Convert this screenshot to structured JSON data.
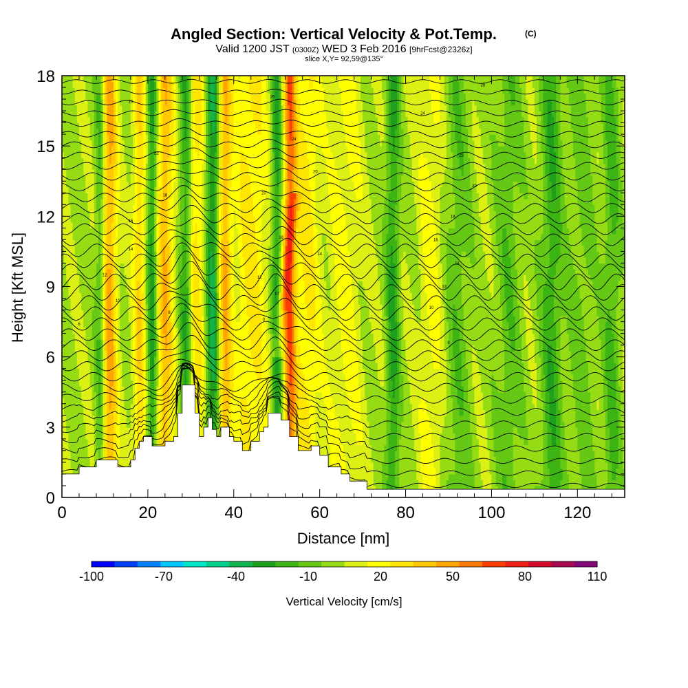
{
  "chart_data": {
    "type": "heatmap",
    "title": "Angled Section: Vertical Velocity & Pot.Temp.",
    "title_mark": "(C)",
    "subtitle": {
      "valid": "Valid 1200 JST",
      "zulu": "(0300Z)",
      "date": "WED 3 Feb 2016",
      "forecast": "[9hrFcst@2326z]"
    },
    "slice_label": "slice X,Y= 92,59@135°",
    "xlabel": "Distance [nm]",
    "ylabel": "Height [Kft MSL]",
    "xlim": [
      0,
      131
    ],
    "ylim": [
      0,
      18
    ],
    "x_ticks": [
      0,
      20,
      40,
      60,
      80,
      100,
      120
    ],
    "y_ticks": [
      0,
      3,
      6,
      9,
      12,
      15,
      18
    ],
    "colorbar": {
      "label": "Vertical Velocity [cm/s]",
      "min": -100,
      "max": 110,
      "step": 10,
      "tick_labels": [
        -100,
        -70,
        -40,
        -10,
        20,
        50,
        80,
        110
      ],
      "colors": [
        "#0000ff",
        "#0040ff",
        "#0080ff",
        "#00c8ff",
        "#00e6c8",
        "#00d28c",
        "#12b450",
        "#1ea01e",
        "#3cb414",
        "#64c814",
        "#96dc14",
        "#dcf014",
        "#ffff00",
        "#ffe600",
        "#ffc800",
        "#ffa500",
        "#ff7800",
        "#ff3c00",
        "#f01e14",
        "#d20a28",
        "#aa0a50",
        "#820a78"
      ]
    },
    "velocity_bands": [
      {
        "x": 11,
        "w": 1.8,
        "v": 45
      },
      {
        "x": 9,
        "w": 1.2,
        "v": -25
      },
      {
        "x": 18,
        "w": 1.5,
        "v": 30
      },
      {
        "x": 21,
        "w": 1.2,
        "v": -35
      },
      {
        "x": 24,
        "w": 2.0,
        "v": 40
      },
      {
        "x": 29,
        "w": 1.5,
        "v": -35
      },
      {
        "x": 31,
        "w": 2.0,
        "v": 30
      },
      {
        "x": 35,
        "w": 1.5,
        "v": -40
      },
      {
        "x": 38,
        "w": 1.5,
        "v": 40
      },
      {
        "x": 44,
        "w": 4.0,
        "v": 25
      },
      {
        "x": 50,
        "w": 1.2,
        "v": -35
      },
      {
        "x": 53,
        "w": 1.5,
        "v": 55
      },
      {
        "x": 57,
        "w": 3.0,
        "v": 25
      },
      {
        "x": 66,
        "w": 4.0,
        "v": 15
      },
      {
        "x": 77,
        "w": 1.5,
        "v": -30
      },
      {
        "x": 86,
        "w": 3.0,
        "v": 15
      },
      {
        "x": 92,
        "w": 3.0,
        "v": -15
      },
      {
        "x": 104,
        "w": 3.0,
        "v": -15
      },
      {
        "x": 114,
        "w": 2.5,
        "v": -25
      },
      {
        "x": 121,
        "w": 3.0,
        "v": -12
      },
      {
        "x": 128,
        "w": 2.0,
        "v": -20
      }
    ],
    "terrain": [
      [
        0,
        1.0
      ],
      [
        4,
        1.0
      ],
      [
        4,
        1.3
      ],
      [
        8,
        1.3
      ],
      [
        8,
        1.6
      ],
      [
        13,
        1.6
      ],
      [
        13,
        1.3
      ],
      [
        16,
        1.3
      ],
      [
        16,
        1.6
      ],
      [
        17,
        1.6
      ],
      [
        17,
        2.1
      ],
      [
        18,
        2.1
      ],
      [
        18,
        2.4
      ],
      [
        19,
        2.4
      ],
      [
        19,
        2.6
      ],
      [
        21,
        2.6
      ],
      [
        21,
        2.2
      ],
      [
        24,
        2.2
      ],
      [
        24,
        2.4
      ],
      [
        26,
        2.4
      ],
      [
        26,
        2.6
      ],
      [
        27,
        2.6
      ],
      [
        27,
        3.6
      ],
      [
        28,
        3.6
      ],
      [
        28,
        4.8
      ],
      [
        31,
        4.8
      ],
      [
        31,
        3.6
      ],
      [
        32,
        3.6
      ],
      [
        32,
        2.6
      ],
      [
        33,
        2.6
      ],
      [
        33,
        3.0
      ],
      [
        34,
        3.0
      ],
      [
        34,
        3.4
      ],
      [
        35,
        3.4
      ],
      [
        35,
        2.9
      ],
      [
        36,
        2.9
      ],
      [
        36,
        2.6
      ],
      [
        37,
        2.6
      ],
      [
        37,
        3.0
      ],
      [
        39,
        3.0
      ],
      [
        39,
        2.6
      ],
      [
        40,
        2.6
      ],
      [
        40,
        2.4
      ],
      [
        42,
        2.4
      ],
      [
        42,
        2.0
      ],
      [
        44,
        2.0
      ],
      [
        44,
        2.4
      ],
      [
        46,
        2.4
      ],
      [
        46,
        2.8
      ],
      [
        47,
        2.8
      ],
      [
        47,
        3.0
      ],
      [
        48,
        3.0
      ],
      [
        48,
        3.6
      ],
      [
        51,
        3.6
      ],
      [
        51,
        3.3
      ],
      [
        53,
        3.3
      ],
      [
        53,
        2.6
      ],
      [
        55,
        2.6
      ],
      [
        55,
        2.0
      ],
      [
        58,
        2.0
      ],
      [
        58,
        2.2
      ],
      [
        60,
        2.2
      ],
      [
        60,
        1.8
      ],
      [
        62,
        1.8
      ],
      [
        62,
        1.3
      ],
      [
        65,
        1.3
      ],
      [
        65,
        1.0
      ],
      [
        67,
        1.0
      ],
      [
        67,
        0.7
      ],
      [
        71,
        0.7
      ],
      [
        71,
        0.35
      ],
      [
        131,
        0.35
      ]
    ],
    "contour_labels": [
      {
        "text": "6",
        "x": 4,
        "y": 7.4
      },
      {
        "text": "8",
        "x": 25,
        "y": 7.9
      },
      {
        "text": "8",
        "x": 47,
        "y": 7.6
      },
      {
        "text": "8",
        "x": 90,
        "y": 6.6
      },
      {
        "text": "10",
        "x": 13,
        "y": 8.4
      },
      {
        "text": "10",
        "x": 50,
        "y": 8.7
      },
      {
        "text": "10",
        "x": 86,
        "y": 8.1
      },
      {
        "text": "12",
        "x": 10,
        "y": 9.5
      },
      {
        "text": "12",
        "x": 46,
        "y": 9.4
      },
      {
        "text": "13",
        "x": 89,
        "y": 9.0
      },
      {
        "text": "14",
        "x": 16,
        "y": 10.6
      },
      {
        "text": "14",
        "x": 60,
        "y": 10.4
      },
      {
        "text": "14",
        "x": 92,
        "y": 10.0
      },
      {
        "text": "16",
        "x": 16,
        "y": 11.8
      },
      {
        "text": "16",
        "x": 51,
        "y": 11.1
      },
      {
        "text": "16",
        "x": 87,
        "y": 11.0
      },
      {
        "text": "18",
        "x": 91,
        "y": 12.0
      },
      {
        "text": "18",
        "x": 24,
        "y": 12.9
      },
      {
        "text": "20",
        "x": 47,
        "y": 13.0
      },
      {
        "text": "20",
        "x": 96,
        "y": 13.3
      },
      {
        "text": "20",
        "x": 59,
        "y": 13.9
      },
      {
        "text": "22",
        "x": 22,
        "y": 14.7
      },
      {
        "text": "22",
        "x": 93,
        "y": 14.6
      },
      {
        "text": "24",
        "x": 54,
        "y": 15.3
      },
      {
        "text": "24",
        "x": 84,
        "y": 16.4
      },
      {
        "text": "26",
        "x": 16,
        "y": 16.9
      },
      {
        "text": "26",
        "x": 49,
        "y": 17.1
      },
      {
        "text": "28",
        "x": 98,
        "y": 17.6
      }
    ]
  }
}
